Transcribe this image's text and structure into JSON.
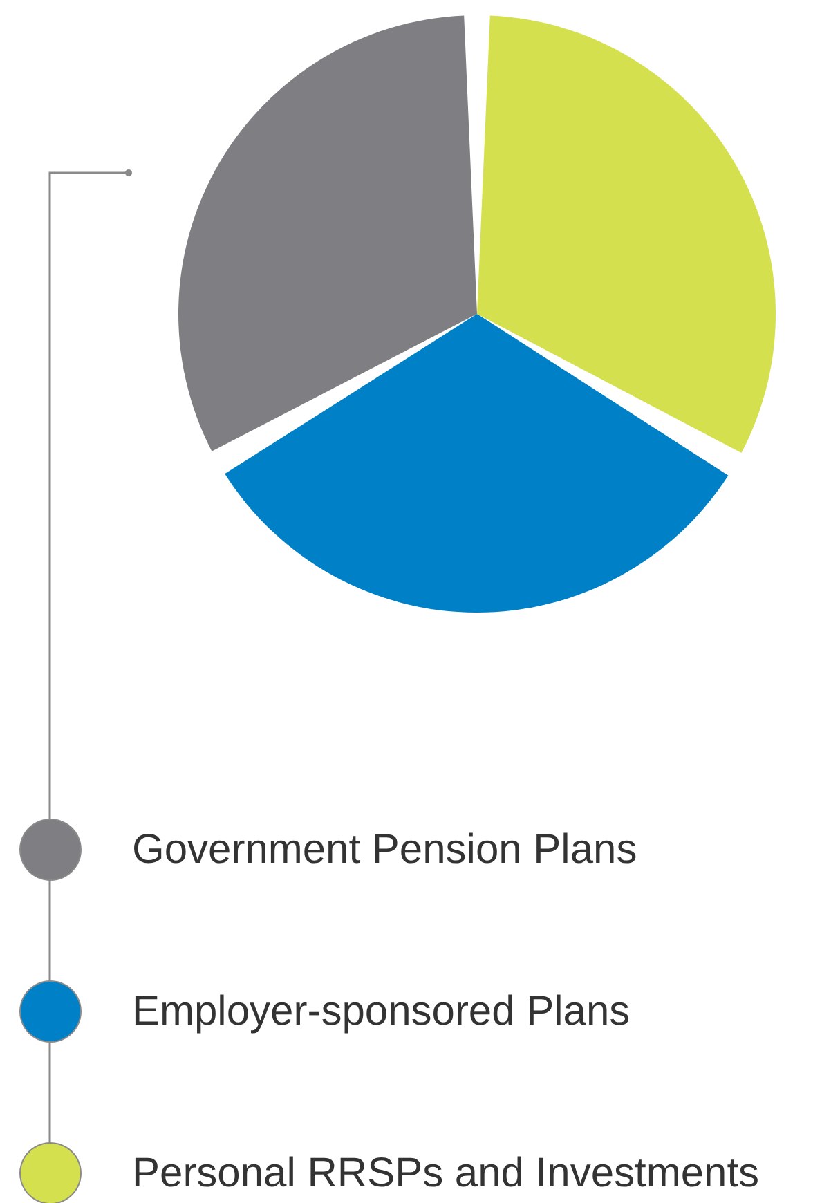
{
  "chart_data": {
    "type": "pie",
    "categories": [
      "Government Pension Plans",
      "Employer-sponsored Plans",
      "Personal RRSPs and Investments"
    ],
    "values": [
      33.3,
      33.3,
      33.4
    ],
    "colors": [
      "#7f7f83",
      "#0080c6",
      "#d5e04f"
    ],
    "legend": "bottom"
  }
}
